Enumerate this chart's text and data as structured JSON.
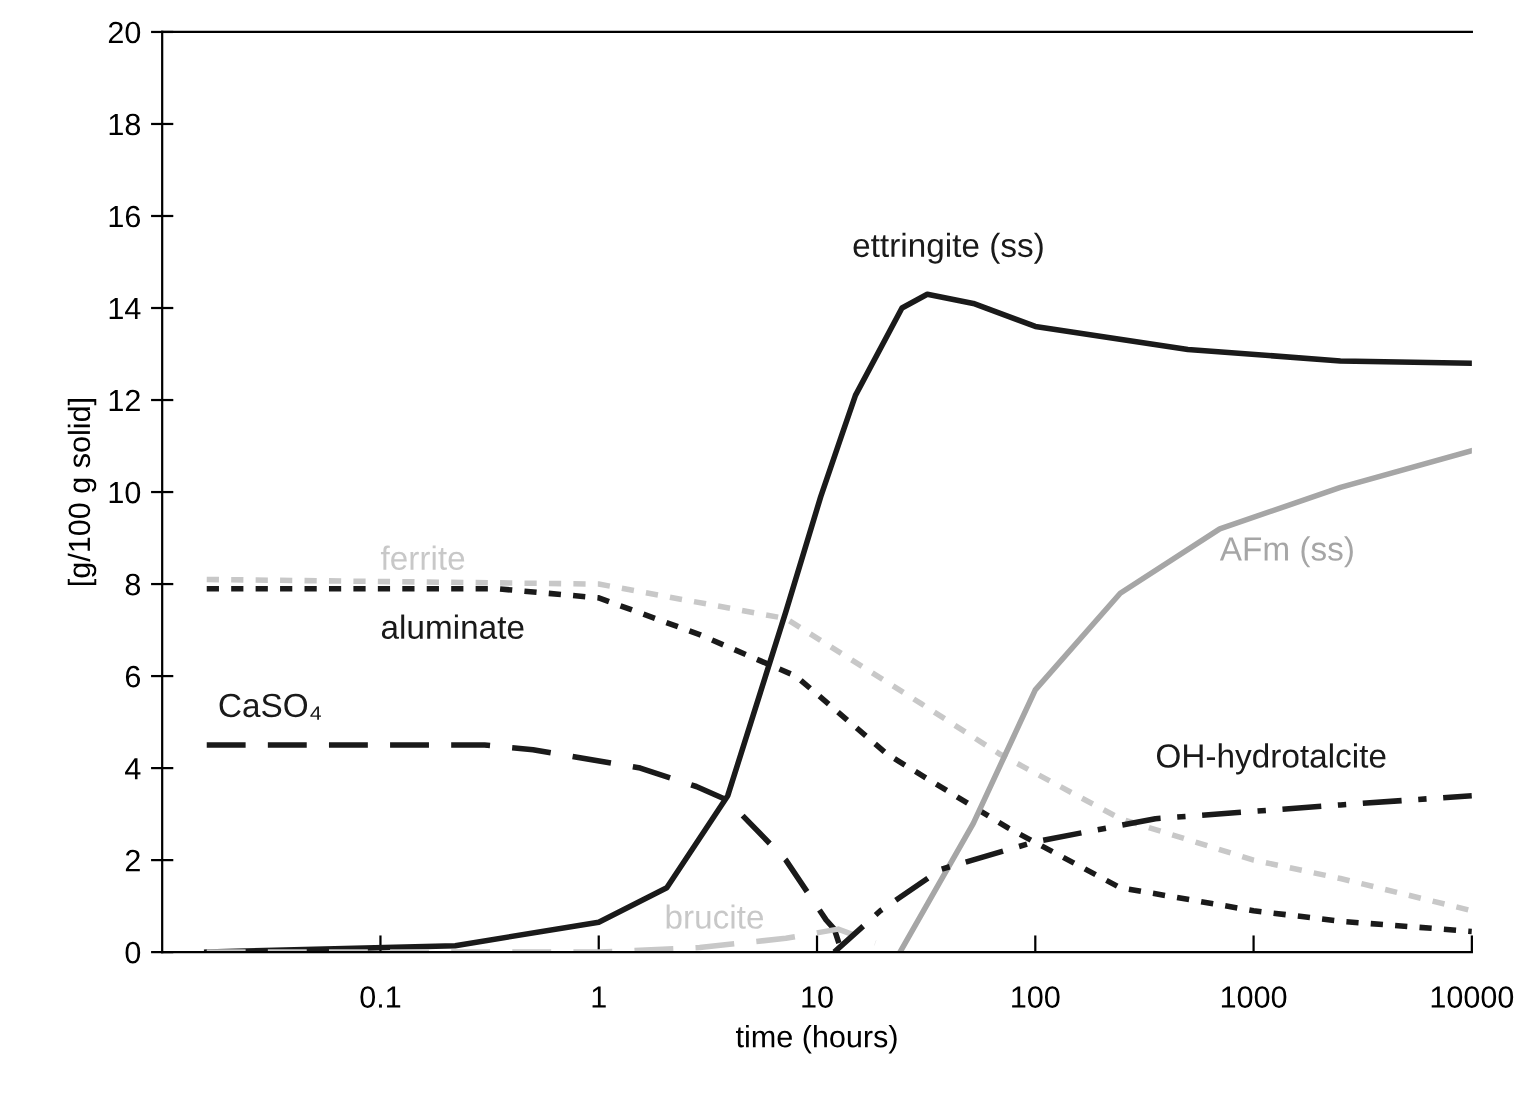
{
  "chart_data": {
    "type": "line",
    "xlabel": "time (hours)",
    "ylabel": "[g/100 g solid]",
    "log": "x",
    "xlim": [
      0.01,
      10000
    ],
    "xticks": [
      0.1,
      1,
      10,
      100,
      1000,
      10000
    ],
    "ylim": [
      0,
      20
    ],
    "yticks": [
      0,
      2,
      4,
      6,
      8,
      10,
      12,
      14,
      16,
      18,
      20
    ],
    "grid": false,
    "legend": false,
    "series": [
      {
        "name": "ettringite (ss)",
        "color": "#1a1a1a",
        "line_style": "solid",
        "x": [
          0.016,
          0.22,
          1,
          2.05,
          3.9,
          7.2,
          10.4,
          12.9,
          15,
          24.5,
          32,
          52,
          100,
          500,
          2500,
          10000
        ],
        "values": [
          0,
          0.14,
          0.65,
          1.4,
          3.4,
          7.4,
          9.9,
          11.2,
          12.1,
          14.0,
          14.3,
          14.1,
          13.6,
          13.1,
          12.85,
          12.8
        ]
      },
      {
        "name": "ferrite",
        "color": "#c8c8c8",
        "line_style": "dotted",
        "x": [
          0.016,
          1,
          7.2,
          30,
          69,
          245,
          1000,
          2500,
          10000
        ],
        "values": [
          8.1,
          8.0,
          7.25,
          5.4,
          4.3,
          2.9,
          2.0,
          1.6,
          0.9
        ]
      },
      {
        "name": "aluminate",
        "color": "#1a1a1a",
        "line_style": "dotted",
        "x": [
          0.016,
          0.34,
          1,
          2.9,
          8,
          21,
          75,
          245,
          1000,
          2500,
          10000
        ],
        "values": [
          7.9,
          7.9,
          7.7,
          6.9,
          6.0,
          4.3,
          2.7,
          1.4,
          0.9,
          0.67,
          0.45
        ]
      },
      {
        "name": "CaSO₄",
        "color": "#1a1a1a",
        "line_style": "dashed",
        "x": [
          0.016,
          0.3,
          0.5,
          1.55,
          2.8,
          3.9,
          7.2,
          11,
          12,
          13
        ],
        "values": [
          4.5,
          4.5,
          4.4,
          4.0,
          3.6,
          3.3,
          2.0,
          0.7,
          0.5,
          0
        ]
      },
      {
        "name": "brucite",
        "color": "#c8c8c8",
        "line_style": "dashed",
        "x": [
          0.016,
          1,
          2.9,
          7.2,
          12.5,
          18.5
        ],
        "values": [
          0,
          0,
          0.1,
          0.3,
          0.5,
          0.2
        ]
      },
      {
        "name": "AFm (ss)",
        "color": "#a6a6a6",
        "line_style": "solid",
        "x": [
          24,
          52,
          100,
          245,
          700,
          2500,
          10000
        ],
        "values": [
          0,
          2.8,
          5.7,
          7.8,
          9.2,
          10.1,
          10.9
        ]
      },
      {
        "name": "OH-hydrotalcite",
        "color": "#1a1a1a",
        "line_style": "dashdot",
        "x": [
          12,
          19.5,
          37,
          100,
          355,
          2500,
          10000
        ],
        "values": [
          0,
          0.9,
          1.8,
          2.4,
          2.9,
          3.2,
          3.4
        ]
      }
    ]
  }
}
